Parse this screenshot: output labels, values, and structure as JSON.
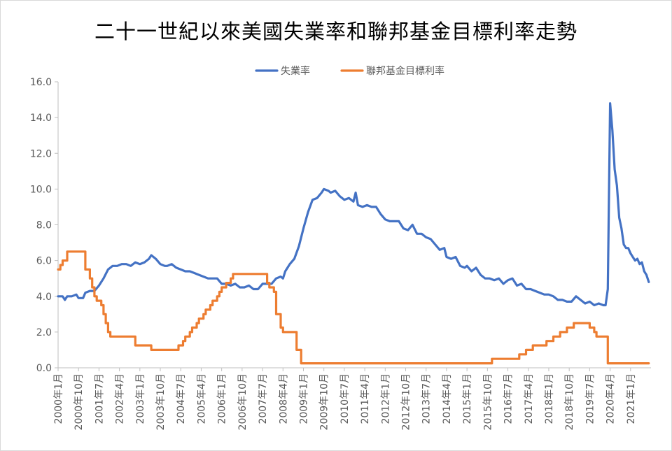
{
  "chart_data": {
    "type": "line",
    "title": "二十一世紀以來美國失業率和聯邦基金目標利率走勢",
    "xlabel": "",
    "ylabel": "",
    "ylim": [
      0,
      16
    ],
    "yticks": [
      "0.0",
      "2.0",
      "4.0",
      "6.0",
      "8.0",
      "10.0",
      "12.0",
      "14.0",
      "16.0"
    ],
    "x_tick_labels": [
      "2000年1月",
      "2000年10月",
      "2001年7月",
      "2002年4月",
      "2003年1月",
      "2003年10月",
      "2004年7月",
      "2005年4月",
      "2006年1月",
      "2006年10月",
      "2007年7月",
      "2008年4月",
      "2009年1月",
      "2009年10月",
      "2010年7月",
      "2011年4月",
      "2012年1月",
      "2012年10月",
      "2013年7月",
      "2014年4月",
      "2015年1月",
      "2015年10月",
      "2016年7月",
      "2017年4月",
      "2018年1月",
      "2018年10月",
      "2019年7月",
      "2020年4月",
      "2021年1月"
    ],
    "x_range": [
      "2000-01",
      "2021-10"
    ],
    "grid": "none",
    "legend_position": "top-center",
    "series": [
      {
        "name": "失業率",
        "color": "#4472C4",
        "points": [
          [
            "2000-01",
            4.0
          ],
          [
            "2000-03",
            4.0
          ],
          [
            "2000-04",
            3.8
          ],
          [
            "2000-05",
            4.0
          ],
          [
            "2000-07",
            4.0
          ],
          [
            "2000-09",
            4.1
          ],
          [
            "2000-10",
            3.9
          ],
          [
            "2000-12",
            3.9
          ],
          [
            "2001-01",
            4.2
          ],
          [
            "2001-03",
            4.3
          ],
          [
            "2001-05",
            4.3
          ],
          [
            "2001-07",
            4.6
          ],
          [
            "2001-09",
            5.0
          ],
          [
            "2001-11",
            5.5
          ],
          [
            "2002-01",
            5.7
          ],
          [
            "2002-03",
            5.7
          ],
          [
            "2002-05",
            5.8
          ],
          [
            "2002-07",
            5.8
          ],
          [
            "2002-09",
            5.7
          ],
          [
            "2002-11",
            5.9
          ],
          [
            "2003-01",
            5.8
          ],
          [
            "2003-03",
            5.9
          ],
          [
            "2003-05",
            6.1
          ],
          [
            "2003-06",
            6.3
          ],
          [
            "2003-08",
            6.1
          ],
          [
            "2003-10",
            5.8
          ],
          [
            "2003-12",
            5.7
          ],
          [
            "2004-01",
            5.7
          ],
          [
            "2004-03",
            5.8
          ],
          [
            "2004-05",
            5.6
          ],
          [
            "2004-07",
            5.5
          ],
          [
            "2004-09",
            5.4
          ],
          [
            "2004-11",
            5.4
          ],
          [
            "2005-01",
            5.3
          ],
          [
            "2005-03",
            5.2
          ],
          [
            "2005-05",
            5.1
          ],
          [
            "2005-07",
            5.0
          ],
          [
            "2005-09",
            5.0
          ],
          [
            "2005-11",
            5.0
          ],
          [
            "2006-01",
            4.7
          ],
          [
            "2006-03",
            4.7
          ],
          [
            "2006-05",
            4.6
          ],
          [
            "2006-07",
            4.7
          ],
          [
            "2006-09",
            4.5
          ],
          [
            "2006-11",
            4.5
          ],
          [
            "2007-01",
            4.6
          ],
          [
            "2007-03",
            4.4
          ],
          [
            "2007-05",
            4.4
          ],
          [
            "2007-07",
            4.7
          ],
          [
            "2007-09",
            4.7
          ],
          [
            "2007-11",
            4.7
          ],
          [
            "2008-01",
            5.0
          ],
          [
            "2008-03",
            5.1
          ],
          [
            "2008-04",
            5.0
          ],
          [
            "2008-05",
            5.4
          ],
          [
            "2008-07",
            5.8
          ],
          [
            "2008-09",
            6.1
          ],
          [
            "2008-11",
            6.8
          ],
          [
            "2009-01",
            7.8
          ],
          [
            "2009-03",
            8.7
          ],
          [
            "2009-05",
            9.4
          ],
          [
            "2009-07",
            9.5
          ],
          [
            "2009-09",
            9.8
          ],
          [
            "2009-10",
            10.0
          ],
          [
            "2009-12",
            9.9
          ],
          [
            "2010-01",
            9.8
          ],
          [
            "2010-03",
            9.9
          ],
          [
            "2010-05",
            9.6
          ],
          [
            "2010-07",
            9.4
          ],
          [
            "2010-09",
            9.5
          ],
          [
            "2010-11",
            9.3
          ],
          [
            "2010-12",
            9.8
          ],
          [
            "2011-01",
            9.1
          ],
          [
            "2011-03",
            9.0
          ],
          [
            "2011-05",
            9.1
          ],
          [
            "2011-07",
            9.0
          ],
          [
            "2011-09",
            9.0
          ],
          [
            "2011-11",
            8.6
          ],
          [
            "2012-01",
            8.3
          ],
          [
            "2012-03",
            8.2
          ],
          [
            "2012-05",
            8.2
          ],
          [
            "2012-07",
            8.2
          ],
          [
            "2012-09",
            7.8
          ],
          [
            "2012-11",
            7.7
          ],
          [
            "2013-01",
            8.0
          ],
          [
            "2013-03",
            7.5
          ],
          [
            "2013-05",
            7.5
          ],
          [
            "2013-07",
            7.3
          ],
          [
            "2013-09",
            7.2
          ],
          [
            "2013-11",
            6.9
          ],
          [
            "2014-01",
            6.6
          ],
          [
            "2014-03",
            6.7
          ],
          [
            "2014-04",
            6.2
          ],
          [
            "2014-06",
            6.1
          ],
          [
            "2014-08",
            6.2
          ],
          [
            "2014-10",
            5.7
          ],
          [
            "2014-12",
            5.6
          ],
          [
            "2015-01",
            5.7
          ],
          [
            "2015-03",
            5.4
          ],
          [
            "2015-05",
            5.6
          ],
          [
            "2015-07",
            5.2
          ],
          [
            "2015-09",
            5.0
          ],
          [
            "2015-11",
            5.0
          ],
          [
            "2016-01",
            4.9
          ],
          [
            "2016-03",
            5.0
          ],
          [
            "2016-05",
            4.7
          ],
          [
            "2016-07",
            4.9
          ],
          [
            "2016-09",
            5.0
          ],
          [
            "2016-11",
            4.6
          ],
          [
            "2017-01",
            4.7
          ],
          [
            "2017-03",
            4.4
          ],
          [
            "2017-05",
            4.4
          ],
          [
            "2017-07",
            4.3
          ],
          [
            "2017-09",
            4.2
          ],
          [
            "2017-11",
            4.1
          ],
          [
            "2018-01",
            4.1
          ],
          [
            "2018-03",
            4.0
          ],
          [
            "2018-05",
            3.8
          ],
          [
            "2018-07",
            3.8
          ],
          [
            "2018-09",
            3.7
          ],
          [
            "2018-11",
            3.7
          ],
          [
            "2019-01",
            4.0
          ],
          [
            "2019-03",
            3.8
          ],
          [
            "2019-05",
            3.6
          ],
          [
            "2019-07",
            3.7
          ],
          [
            "2019-09",
            3.5
          ],
          [
            "2019-11",
            3.6
          ],
          [
            "2020-01",
            3.5
          ],
          [
            "2020-02",
            3.5
          ],
          [
            "2020-03",
            4.4
          ],
          [
            "2020-04",
            14.8
          ],
          [
            "2020-05",
            13.3
          ],
          [
            "2020-06",
            11.1
          ],
          [
            "2020-07",
            10.2
          ],
          [
            "2020-08",
            8.4
          ],
          [
            "2020-09",
            7.8
          ],
          [
            "2020-10",
            6.9
          ],
          [
            "2020-11",
            6.7
          ],
          [
            "2020-12",
            6.7
          ],
          [
            "2021-01",
            6.4
          ],
          [
            "2021-02",
            6.2
          ],
          [
            "2021-03",
            6.0
          ],
          [
            "2021-04",
            6.1
          ],
          [
            "2021-05",
            5.8
          ],
          [
            "2021-06",
            5.9
          ],
          [
            "2021-07",
            5.4
          ],
          [
            "2021-08",
            5.2
          ],
          [
            "2021-09",
            4.8
          ]
        ]
      },
      {
        "name": "聯邦基金目標利率",
        "color": "#ED7D31",
        "points": [
          [
            "2000-01",
            5.5
          ],
          [
            "2000-02",
            5.75
          ],
          [
            "2000-03",
            6.0
          ],
          [
            "2000-05",
            6.5
          ],
          [
            "2000-12",
            6.5
          ],
          [
            "2001-01",
            5.5
          ],
          [
            "2001-03",
            5.0
          ],
          [
            "2001-04",
            4.5
          ],
          [
            "2001-05",
            4.0
          ],
          [
            "2001-06",
            3.75
          ],
          [
            "2001-08",
            3.5
          ],
          [
            "2001-09",
            3.0
          ],
          [
            "2001-10",
            2.5
          ],
          [
            "2001-11",
            2.0
          ],
          [
            "2001-12",
            1.75
          ],
          [
            "2002-10",
            1.75
          ],
          [
            "2002-11",
            1.25
          ],
          [
            "2003-05",
            1.25
          ],
          [
            "2003-06",
            1.0
          ],
          [
            "2004-05",
            1.0
          ],
          [
            "2004-06",
            1.25
          ],
          [
            "2004-08",
            1.5
          ],
          [
            "2004-09",
            1.75
          ],
          [
            "2004-11",
            2.0
          ],
          [
            "2004-12",
            2.25
          ],
          [
            "2005-02",
            2.5
          ],
          [
            "2005-03",
            2.75
          ],
          [
            "2005-05",
            3.0
          ],
          [
            "2005-06",
            3.25
          ],
          [
            "2005-08",
            3.5
          ],
          [
            "2005-09",
            3.75
          ],
          [
            "2005-11",
            4.0
          ],
          [
            "2005-12",
            4.25
          ],
          [
            "2006-01",
            4.5
          ],
          [
            "2006-03",
            4.75
          ],
          [
            "2006-05",
            5.0
          ],
          [
            "2006-06",
            5.25
          ],
          [
            "2007-08",
            5.25
          ],
          [
            "2007-09",
            4.75
          ],
          [
            "2007-10",
            4.5
          ],
          [
            "2007-12",
            4.25
          ],
          [
            "2008-01",
            3.0
          ],
          [
            "2008-03",
            2.25
          ],
          [
            "2008-04",
            2.0
          ],
          [
            "2008-09",
            2.0
          ],
          [
            "2008-10",
            1.0
          ],
          [
            "2008-11",
            1.0
          ],
          [
            "2008-12",
            0.25
          ],
          [
            "2015-11",
            0.25
          ],
          [
            "2015-12",
            0.5
          ],
          [
            "2016-11",
            0.5
          ],
          [
            "2016-12",
            0.75
          ],
          [
            "2017-02",
            0.75
          ],
          [
            "2017-03",
            1.0
          ],
          [
            "2017-05",
            1.0
          ],
          [
            "2017-06",
            1.25
          ],
          [
            "2017-11",
            1.25
          ],
          [
            "2017-12",
            1.5
          ],
          [
            "2018-02",
            1.5
          ],
          [
            "2018-03",
            1.75
          ],
          [
            "2018-05",
            1.75
          ],
          [
            "2018-06",
            2.0
          ],
          [
            "2018-08",
            2.0
          ],
          [
            "2018-09",
            2.25
          ],
          [
            "2018-11",
            2.25
          ],
          [
            "2018-12",
            2.5
          ],
          [
            "2019-06",
            2.5
          ],
          [
            "2019-07",
            2.25
          ],
          [
            "2019-08",
            2.25
          ],
          [
            "2019-09",
            2.0
          ],
          [
            "2019-10",
            1.75
          ],
          [
            "2020-02",
            1.75
          ],
          [
            "2020-03",
            0.25
          ],
          [
            "2021-09",
            0.25
          ]
        ]
      }
    ]
  }
}
